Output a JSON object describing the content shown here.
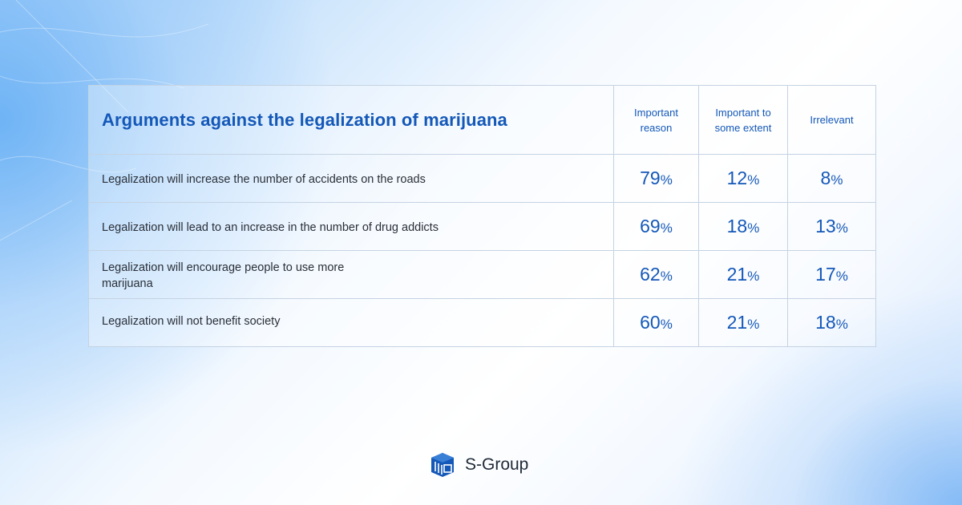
{
  "chart_data": {
    "type": "table",
    "title": "Arguments against the legalization of marijuana",
    "columns": [
      "Important reason",
      "Important to some extent",
      "Irrelevant"
    ],
    "rows": [
      {
        "label": "Legalization will increase the number of accidents on the roads",
        "values": [
          "79",
          "12",
          "8"
        ]
      },
      {
        "label": "Legalization will lead to an increase in the number of drug addicts",
        "values": [
          "69",
          "18",
          "13"
        ]
      },
      {
        "label": "Legalization will encourage people to use more marijuana",
        "values": [
          "62",
          "21",
          "17"
        ]
      },
      {
        "label": "Legalization will not benefit society",
        "values": [
          "60",
          "21",
          "18"
        ]
      }
    ],
    "unit": "%"
  },
  "brand": {
    "name": "S-Group",
    "logo_icon": "s-group-cube-icon"
  },
  "colors": {
    "accent": "#1458b8",
    "text": "#2a2f38",
    "border": "#c5d3e2"
  }
}
